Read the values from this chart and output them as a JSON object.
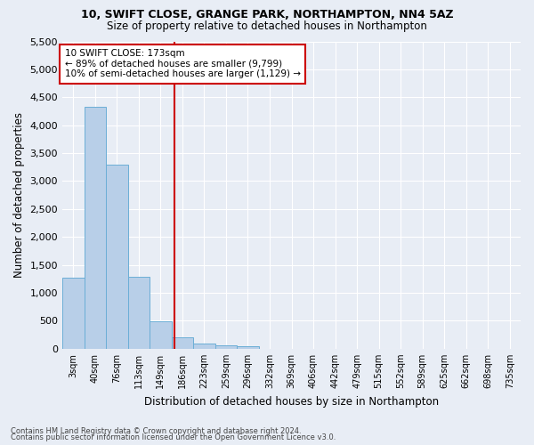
{
  "title1": "10, SWIFT CLOSE, GRANGE PARK, NORTHAMPTON, NN4 5AZ",
  "title2": "Size of property relative to detached houses in Northampton",
  "xlabel": "Distribution of detached houses by size in Northampton",
  "ylabel": "Number of detached properties",
  "footer1": "Contains HM Land Registry data © Crown copyright and database right 2024.",
  "footer2": "Contains public sector information licensed under the Open Government Licence v3.0.",
  "annotation_title": "10 SWIFT CLOSE: 173sqm",
  "annotation_line1": "← 89% of detached houses are smaller (9,799)",
  "annotation_line2": "10% of semi-detached houses are larger (1,129) →",
  "property_size_bin": 4,
  "bar_color": "#b8cfe8",
  "bar_edge_color": "#6baed6",
  "vline_color": "#cc0000",
  "annotation_box_color": "#cc0000",
  "bg_color": "#e8edf5",
  "categories": [
    "3sqm",
    "40sqm",
    "76sqm",
    "113sqm",
    "149sqm",
    "186sqm",
    "223sqm",
    "259sqm",
    "296sqm",
    "332sqm",
    "369sqm",
    "406sqm",
    "442sqm",
    "479sqm",
    "515sqm",
    "552sqm",
    "589sqm",
    "625sqm",
    "662sqm",
    "698sqm",
    "735sqm"
  ],
  "values": [
    1270,
    4330,
    3300,
    1290,
    490,
    210,
    90,
    65,
    50,
    0,
    0,
    0,
    0,
    0,
    0,
    0,
    0,
    0,
    0,
    0,
    0
  ],
  "ylim": [
    0,
    5500
  ],
  "yticks": [
    0,
    500,
    1000,
    1500,
    2000,
    2500,
    3000,
    3500,
    4000,
    4500,
    5000,
    5500
  ],
  "vline_x": 4.62
}
